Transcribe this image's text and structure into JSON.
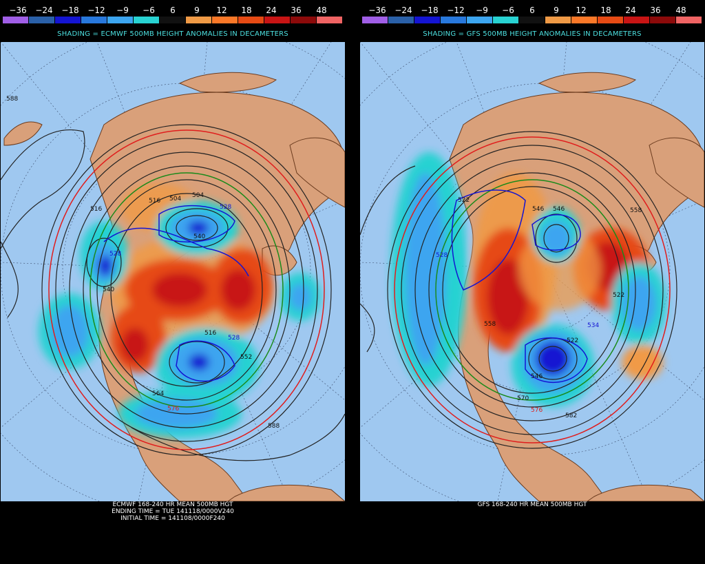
{
  "colorbar": {
    "labels": [
      "−36",
      "−24",
      "−18",
      "−12",
      "−9",
      "−6",
      "6",
      "9",
      "12",
      "18",
      "24",
      "36",
      "48"
    ],
    "colors": [
      "#a05ee6",
      "#2a60a8",
      "#1414d2",
      "#2878dc",
      "#3ca5f0",
      "#28d2d2",
      "#111111",
      "#f09a46",
      "#fa7828",
      "#e64a14",
      "#c81414",
      "#8c0a0a",
      "#f06464"
    ]
  },
  "panels": [
    {
      "caption": "SHADING = ECMWF 500MB HEIGHT ANOMALIES IN DECAMETERS",
      "contour_labels": [
        "588",
        "516",
        "504",
        "504",
        "516",
        "528",
        "528",
        "540",
        "540",
        "516",
        "528",
        "552",
        "564",
        "576",
        "588"
      ],
      "footer_lines": [
        "ECMWF 168-240 HR MEAN 500MB HGT",
        "ENDING TIME = TUE 141118/0000V240",
        "INITIAL TIME = 141108/0000F240"
      ]
    },
    {
      "caption": "SHADING = GFS 500MB HEIGHT ANOMALIES IN DECAMETERS",
      "contour_labels": [
        "522",
        "528",
        "546",
        "546",
        "558",
        "558",
        "522",
        "534",
        "522",
        "546",
        "570",
        "576",
        "582"
      ],
      "footer_lines": [
        "GFS 168-240 HR MEAN 500MB HGT"
      ]
    }
  ]
}
